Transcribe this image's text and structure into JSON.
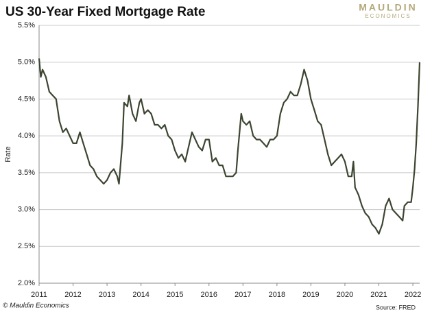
{
  "chart_data": {
    "type": "line",
    "title": "US 30-Year Fixed Mortgage Rate",
    "brand": "MAULDIN",
    "brand_sub": "ECONOMICS",
    "y_label": "Rate",
    "copyright": "© Mauldin Economics",
    "source": "Source: FRED",
    "xlim": [
      2011,
      2022.2
    ],
    "xticks": [
      2011,
      2012,
      2013,
      2014,
      2015,
      2016,
      2017,
      2018,
      2019,
      2020,
      2021,
      2022
    ],
    "ylim": [
      2.0,
      5.5
    ],
    "yticks": [
      {
        "value": 2.0,
        "label": "2.0%"
      },
      {
        "value": 2.5,
        "label": "2.5%"
      },
      {
        "value": 3.0,
        "label": "3.0%"
      },
      {
        "value": 3.5,
        "label": "3.5%"
      },
      {
        "value": 4.0,
        "label": "4.0%"
      },
      {
        "value": 4.5,
        "label": "4.5%"
      },
      {
        "value": 5.0,
        "label": "5.0%"
      },
      {
        "value": 5.5,
        "label": "5.5%"
      }
    ],
    "grid": true,
    "series": [
      {
        "name": "Rate",
        "color": "#3b4530",
        "x": [
          2011.0,
          2011.05,
          2011.1,
          2011.2,
          2011.3,
          2011.4,
          2011.5,
          2011.6,
          2011.7,
          2011.8,
          2011.9,
          2012.0,
          2012.1,
          2012.2,
          2012.3,
          2012.4,
          2012.5,
          2012.6,
          2012.7,
          2012.8,
          2012.9,
          2013.0,
          2013.1,
          2013.2,
          2013.3,
          2013.35,
          2013.45,
          2013.5,
          2013.6,
          2013.65,
          2013.75,
          2013.85,
          2013.95,
          2014.0,
          2014.1,
          2014.2,
          2014.3,
          2014.4,
          2014.5,
          2014.6,
          2014.7,
          2014.8,
          2014.9,
          2015.0,
          2015.1,
          2015.2,
          2015.3,
          2015.4,
          2015.5,
          2015.6,
          2015.7,
          2015.8,
          2015.9,
          2016.0,
          2016.1,
          2016.2,
          2016.3,
          2016.4,
          2016.5,
          2016.6,
          2016.7,
          2016.8,
          2016.85,
          2016.95,
          2017.0,
          2017.1,
          2017.2,
          2017.3,
          2017.4,
          2017.5,
          2017.6,
          2017.7,
          2017.8,
          2017.9,
          2018.0,
          2018.1,
          2018.2,
          2018.3,
          2018.4,
          2018.5,
          2018.6,
          2018.7,
          2018.8,
          2018.9,
          2019.0,
          2019.1,
          2019.2,
          2019.3,
          2019.4,
          2019.5,
          2019.6,
          2019.7,
          2019.8,
          2019.9,
          2020.0,
          2020.1,
          2020.2,
          2020.25,
          2020.3,
          2020.4,
          2020.5,
          2020.6,
          2020.7,
          2020.8,
          2020.9,
          2021.0,
          2021.1,
          2021.2,
          2021.3,
          2021.4,
          2021.5,
          2021.6,
          2021.7,
          2021.75,
          2021.85,
          2021.95,
          2022.0,
          2022.05,
          2022.1,
          2022.15,
          2022.2
        ],
        "values": [
          5.05,
          4.8,
          4.9,
          4.8,
          4.6,
          4.55,
          4.5,
          4.2,
          4.05,
          4.1,
          4.0,
          3.9,
          3.9,
          4.05,
          3.9,
          3.75,
          3.6,
          3.55,
          3.45,
          3.4,
          3.35,
          3.4,
          3.5,
          3.55,
          3.45,
          3.35,
          3.9,
          4.45,
          4.4,
          4.55,
          4.3,
          4.2,
          4.45,
          4.5,
          4.3,
          4.35,
          4.3,
          4.15,
          4.15,
          4.1,
          4.15,
          4.0,
          3.95,
          3.8,
          3.7,
          3.75,
          3.65,
          3.85,
          4.05,
          3.95,
          3.85,
          3.8,
          3.95,
          3.95,
          3.65,
          3.7,
          3.6,
          3.6,
          3.45,
          3.45,
          3.45,
          3.5,
          3.8,
          4.3,
          4.2,
          4.15,
          4.2,
          4.0,
          3.95,
          3.95,
          3.9,
          3.85,
          3.95,
          3.95,
          4.0,
          4.3,
          4.45,
          4.5,
          4.6,
          4.55,
          4.55,
          4.7,
          4.9,
          4.75,
          4.5,
          4.35,
          4.2,
          4.15,
          3.95,
          3.75,
          3.6,
          3.65,
          3.7,
          3.75,
          3.65,
          3.45,
          3.45,
          3.65,
          3.3,
          3.2,
          3.05,
          2.95,
          2.9,
          2.8,
          2.75,
          2.67,
          2.8,
          3.05,
          3.15,
          3.0,
          2.95,
          2.9,
          2.85,
          3.05,
          3.1,
          3.1,
          3.3,
          3.55,
          3.9,
          4.4,
          5.0
        ]
      }
    ]
  }
}
